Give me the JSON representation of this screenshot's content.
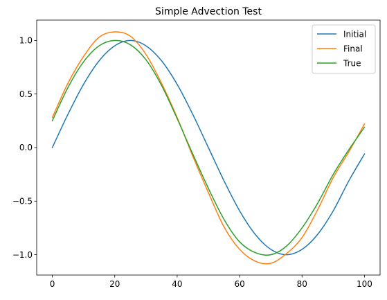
{
  "chart_data": {
    "type": "line",
    "title": "Simple Advection Test",
    "xlabel": "",
    "ylabel": "",
    "xlim": [
      -5,
      105
    ],
    "ylim": [
      -1.19,
      1.19
    ],
    "x_ticks": [
      0,
      20,
      40,
      60,
      80,
      100
    ],
    "y_ticks": [
      -1.0,
      -0.5,
      0.0,
      0.5,
      1.0
    ],
    "x_tick_labels": [
      "0",
      "20",
      "40",
      "60",
      "80",
      "100"
    ],
    "y_tick_labels": [
      "−1.0",
      "−0.5",
      "0.0",
      "0.5",
      "1.0"
    ],
    "grid": false,
    "legend_position": "top-right",
    "x": [
      0,
      5,
      10,
      15,
      20,
      25,
      30,
      35,
      40,
      45,
      50,
      55,
      60,
      65,
      70,
      75,
      80,
      85,
      90,
      95,
      100
    ],
    "series": [
      {
        "name": "Initial",
        "color": "#1f77b4",
        "values": [
          0.0,
          0.31,
          0.59,
          0.81,
          0.95,
          1.0,
          0.95,
          0.81,
          0.59,
          0.31,
          0.0,
          -0.31,
          -0.59,
          -0.81,
          -0.95,
          -1.0,
          -0.95,
          -0.81,
          -0.59,
          -0.31,
          -0.06
        ]
      },
      {
        "name": "Final",
        "color": "#ff7f0e",
        "values": [
          0.28,
          0.6,
          0.85,
          1.03,
          1.08,
          1.04,
          0.87,
          0.6,
          0.28,
          -0.08,
          -0.42,
          -0.74,
          -0.95,
          -1.06,
          -1.08,
          -0.99,
          -0.84,
          -0.58,
          -0.28,
          -0.04,
          0.22
        ]
      },
      {
        "name": "True",
        "color": "#2ca02c",
        "values": [
          0.25,
          0.56,
          0.8,
          0.95,
          1.0,
          0.96,
          0.82,
          0.58,
          0.27,
          -0.06,
          -0.38,
          -0.67,
          -0.88,
          -0.98,
          -1.0,
          -0.92,
          -0.75,
          -0.52,
          -0.25,
          -0.02,
          0.19
        ]
      }
    ]
  }
}
